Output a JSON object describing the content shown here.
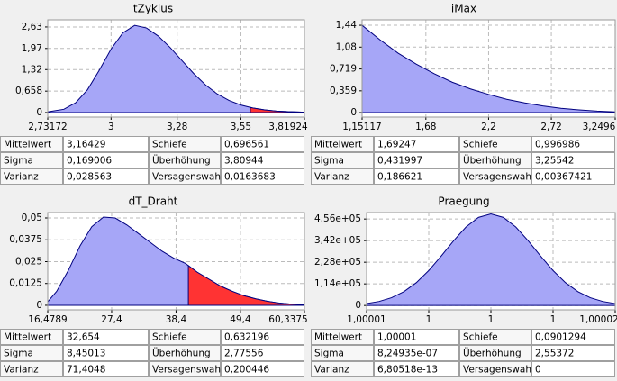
{
  "chart_data": [
    {
      "type": "area",
      "title": "tZyklus",
      "x": [
        2.73172,
        2.8,
        2.85,
        2.9,
        2.95,
        3.0,
        3.05,
        3.1,
        3.15,
        3.2,
        3.25,
        3.3,
        3.35,
        3.4,
        3.45,
        3.5,
        3.55,
        3.6,
        3.65,
        3.7,
        3.75,
        3.81924
      ],
      "values": [
        0.02,
        0.1,
        0.3,
        0.7,
        1.3,
        1.95,
        2.45,
        2.68,
        2.6,
        2.35,
        2.0,
        1.6,
        1.2,
        0.85,
        0.57,
        0.37,
        0.23,
        0.14,
        0.08,
        0.045,
        0.025,
        0.01
      ],
      "color": "#a6a6f7",
      "line_color": "#00007f",
      "shade_color": "#ff3333",
      "shade_from": 3.59,
      "xlim": [
        2.73172,
        3.81924
      ],
      "xticks": [
        {
          "value": 2.73172,
          "label": "2,73172"
        },
        3,
        {
          "value": 3.28,
          "label": "3,28"
        },
        {
          "value": 3.55,
          "label": "3,55"
        },
        {
          "value": 3.81924,
          "label": "3,81924"
        }
      ],
      "ylim": [
        -0.14,
        2.85
      ],
      "yticks": [
        0,
        {
          "value": 0.658,
          "label": "0,658"
        },
        {
          "value": 1.32,
          "label": "1,32"
        },
        {
          "value": 1.97,
          "label": "1,97"
        },
        {
          "value": 2.63,
          "label": "2,63"
        }
      ],
      "grid": true,
      "table": {
        "rows": [
          [
            "Mittelwert",
            "3,16429",
            "Schiefe",
            "0,696561"
          ],
          [
            "Sigma",
            "0,169006",
            "Überhöhung",
            "3,80944"
          ],
          [
            "Varianz",
            "0,028563",
            "Versagenswahr",
            "0,0163683"
          ]
        ]
      }
    },
    {
      "type": "area",
      "title": "iMax",
      "x": [
        1.15117,
        1.3,
        1.45,
        1.6,
        1.75,
        1.9,
        2.05,
        2.2,
        2.35,
        2.5,
        2.65,
        2.8,
        2.95,
        3.1,
        3.2496
      ],
      "values": [
        1.44,
        1.2,
        0.98,
        0.8,
        0.64,
        0.5,
        0.39,
        0.3,
        0.22,
        0.16,
        0.11,
        0.07,
        0.045,
        0.025,
        0.012
      ],
      "color": "#a6a6f7",
      "line_color": "#00007f",
      "xlim": [
        1.15117,
        3.2496
      ],
      "xticks": [
        {
          "value": 1.15117,
          "label": "1,15117"
        },
        {
          "value": 1.68,
          "label": "1,68"
        },
        {
          "value": 2.2,
          "label": "2,2"
        },
        {
          "value": 2.72,
          "label": "2,72"
        },
        {
          "value": 3.2496,
          "label": "3,2496"
        }
      ],
      "ylim": [
        -0.074,
        1.53
      ],
      "yticks": [
        0,
        {
          "value": 0.359,
          "label": "0,359"
        },
        {
          "value": 0.719,
          "label": "0,719"
        },
        {
          "value": 1.08,
          "label": "1,08"
        },
        {
          "value": 1.44,
          "label": "1,44"
        }
      ],
      "grid": true,
      "table": {
        "rows": [
          [
            "Mittelwert",
            "1,69247",
            "Schiefe",
            "0,996986"
          ],
          [
            "Sigma",
            "0,431997",
            "Überhöhung",
            "3,25542"
          ],
          [
            "Varianz",
            "0,186621",
            "Versagenswahr",
            "0,00367421"
          ]
        ]
      }
    },
    {
      "type": "area",
      "title": "dT_Draht",
      "x": [
        16.4789,
        18,
        20,
        22,
        24,
        26,
        28,
        30,
        32,
        34,
        36,
        38,
        40,
        42,
        44,
        46,
        48,
        50,
        52,
        54,
        56,
        58,
        60.3375
      ],
      "values": [
        0.002,
        0.008,
        0.02,
        0.034,
        0.045,
        0.0505,
        0.05,
        0.046,
        0.041,
        0.036,
        0.031,
        0.027,
        0.024,
        0.019,
        0.015,
        0.011,
        0.008,
        0.0055,
        0.0037,
        0.0023,
        0.0013,
        0.0007,
        0.0003
      ],
      "color": "#a6a6f7",
      "line_color": "#00007f",
      "shade_color": "#ff3333",
      "shade_from": 40.5,
      "xlim": [
        16.4789,
        60.3375
      ],
      "xticks": [
        {
          "value": 16.4789,
          "label": "16,4789"
        },
        {
          "value": 27.4,
          "label": "27,4"
        },
        {
          "value": 38.4,
          "label": "38,4"
        },
        {
          "value": 49.4,
          "label": "49,4"
        },
        {
          "value": 60.3375,
          "label": "60,3375"
        }
      ],
      "ylim": [
        -0.0026,
        0.0531
      ],
      "yticks": [
        0,
        {
          "value": 0.0125,
          "label": "0,0125"
        },
        {
          "value": 0.025,
          "label": "0,025"
        },
        {
          "value": 0.0375,
          "label": "0,0375"
        },
        {
          "value": 0.05,
          "label": "0,05"
        }
      ],
      "grid": true,
      "table": {
        "rows": [
          [
            "Mittelwert",
            "32,654",
            "Schiefe",
            "0,632196"
          ],
          [
            "Sigma",
            "8,45013",
            "Überhöhung",
            "2,77556"
          ],
          [
            "Varianz",
            "71,4048",
            "Versagenswahr",
            "0,200446"
          ]
        ]
      }
    },
    {
      "type": "area",
      "title": "Praegung",
      "x": [
        1.000005,
        1.0000055,
        1.000006,
        1.0000065,
        1.000007,
        1.0000075,
        1.000008,
        1.0000085,
        1.000009,
        1.0000095,
        1.00001,
        1.0000105,
        1.000011,
        1.0000115,
        1.000012,
        1.0000125,
        1.000013,
        1.0000135,
        1.000014,
        1.0000145,
        1.000015
      ],
      "values": [
        10200,
        21200,
        40900,
        72900,
        120400,
        184000,
        260700,
        341500,
        414000,
        464600,
        483000,
        464600,
        414000,
        341500,
        260700,
        184000,
        120400,
        72900,
        40900,
        21200,
        10200
      ],
      "color": "#a6a6f7",
      "line_color": "#00007f",
      "xlim": [
        1.000005,
        1.000015
      ],
      "xticks": [
        {
          "value": 1.000005,
          "label": "1,00001"
        },
        {
          "value": 1.0000075,
          "label": "1"
        },
        {
          "value": 1.00001,
          "label": "1"
        },
        {
          "value": 1.0000125,
          "label": "1"
        },
        {
          "value": 1.000015,
          "label": "1,00002"
        }
      ],
      "ylim": [
        -23000,
        490000
      ],
      "yticks": [
        0,
        {
          "value": 114000,
          "label": "1,14e+05"
        },
        {
          "value": 228000,
          "label": "2,28e+05"
        },
        {
          "value": 342000,
          "label": "3,42e+05"
        },
        {
          "value": 456000,
          "label": "4,56e+05"
        }
      ],
      "grid": true,
      "table": {
        "rows": [
          [
            "Mittelwert",
            "1,00001",
            "Schiefe",
            "0,0901294"
          ],
          [
            "Sigma",
            "8,24935e-07",
            "Überhöhung",
            "2,55372"
          ],
          [
            "Varianz",
            "6,80518e-13",
            "Versagenswahr",
            "0"
          ]
        ]
      }
    }
  ]
}
